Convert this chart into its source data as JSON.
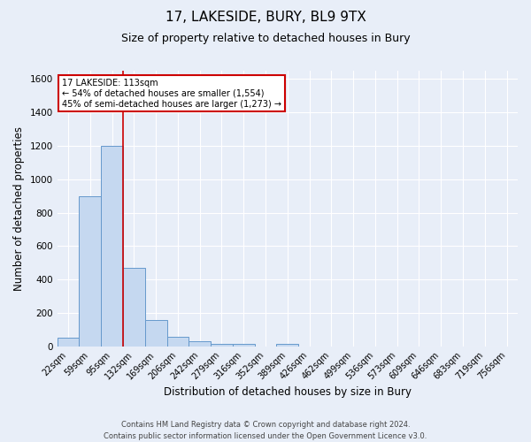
{
  "title": "17, LAKESIDE, BURY, BL9 9TX",
  "subtitle": "Size of property relative to detached houses in Bury",
  "xlabel": "Distribution of detached houses by size in Bury",
  "ylabel": "Number of detached properties",
  "footer_line1": "Contains HM Land Registry data © Crown copyright and database right 2024.",
  "footer_line2": "Contains public sector information licensed under the Open Government Licence v3.0.",
  "annotation_line1": "17 LAKESIDE: 113sqm",
  "annotation_line2": "← 54% of detached houses are smaller (1,554)",
  "annotation_line3": "45% of semi-detached houses are larger (1,273) →",
  "bar_labels": [
    "22sqm",
    "59sqm",
    "95sqm",
    "132sqm",
    "169sqm",
    "206sqm",
    "242sqm",
    "279sqm",
    "316sqm",
    "352sqm",
    "389sqm",
    "426sqm",
    "462sqm",
    "499sqm",
    "536sqm",
    "573sqm",
    "609sqm",
    "646sqm",
    "683sqm",
    "719sqm",
    "756sqm"
  ],
  "bar_values": [
    50,
    900,
    1200,
    470,
    155,
    55,
    30,
    15,
    15,
    0,
    15,
    0,
    0,
    0,
    0,
    0,
    0,
    0,
    0,
    0,
    0
  ],
  "bar_color": "#c5d8f0",
  "bar_edge_color": "#6699cc",
  "red_line_index": 2,
  "ylim": [
    0,
    1650
  ],
  "yticks": [
    0,
    200,
    400,
    600,
    800,
    1000,
    1200,
    1400,
    1600
  ],
  "background_color": "#e8eef8",
  "grid_color": "#ffffff",
  "title_fontsize": 11,
  "subtitle_fontsize": 9,
  "xlabel_fontsize": 8.5,
  "ylabel_fontsize": 8.5,
  "tick_fontsize": 7,
  "ytick_fontsize": 7.5,
  "annotation_box_color": "#ffffff",
  "annotation_box_edgecolor": "#cc0000",
  "annotation_fontsize": 7,
  "red_line_color": "#cc0000",
  "footer_fontsize": 6,
  "footer_color": "#444444"
}
